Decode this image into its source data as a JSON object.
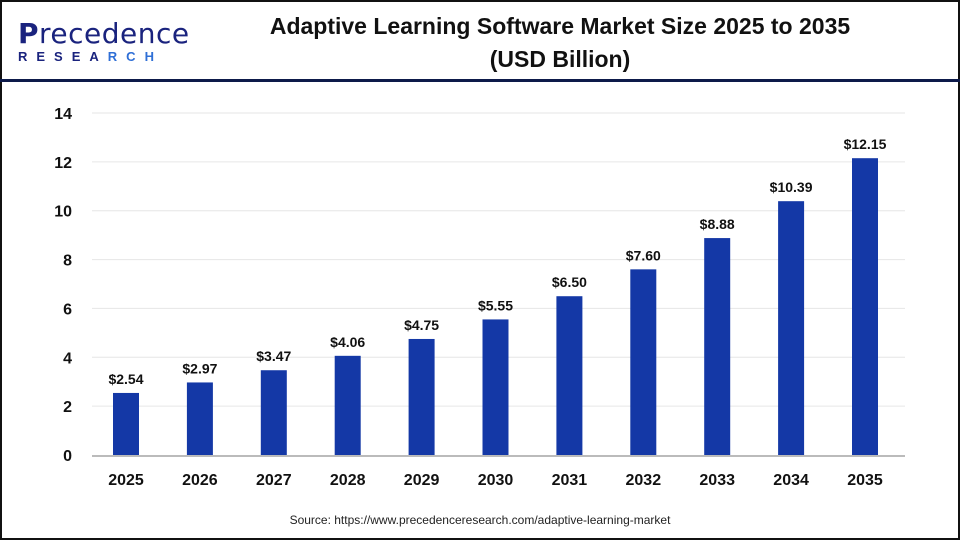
{
  "logo": {
    "brand": "Precedence",
    "sub": "RESEARCH"
  },
  "title_line1": "Adaptive Learning Software Market Size 2025 to 2035",
  "title_line2": "(USD Billion)",
  "source": "Source: https://www.precedenceresearch.com/adaptive-learning-market",
  "chart_data": {
    "type": "bar",
    "title": "Adaptive Learning Software Market Size 2025 to 2035 (USD Billion)",
    "categories": [
      "2025",
      "2026",
      "2027",
      "2028",
      "2029",
      "2030",
      "2031",
      "2032",
      "2033",
      "2034",
      "2035"
    ],
    "values": [
      2.54,
      2.97,
      3.47,
      4.06,
      4.75,
      5.55,
      6.5,
      7.6,
      8.88,
      10.39,
      12.15
    ],
    "data_labels": [
      "$2.54",
      "$2.97",
      "$3.47",
      "$4.06",
      "$4.75",
      "$5.55",
      "$6.50",
      "$7.60",
      "$8.88",
      "$10.39",
      "$12.15"
    ],
    "ylim": [
      0,
      14
    ],
    "yticks": [
      0,
      2,
      4,
      6,
      8,
      10,
      12,
      14
    ],
    "grid": true,
    "bar_color": "#1438a6",
    "legend": "none"
  }
}
